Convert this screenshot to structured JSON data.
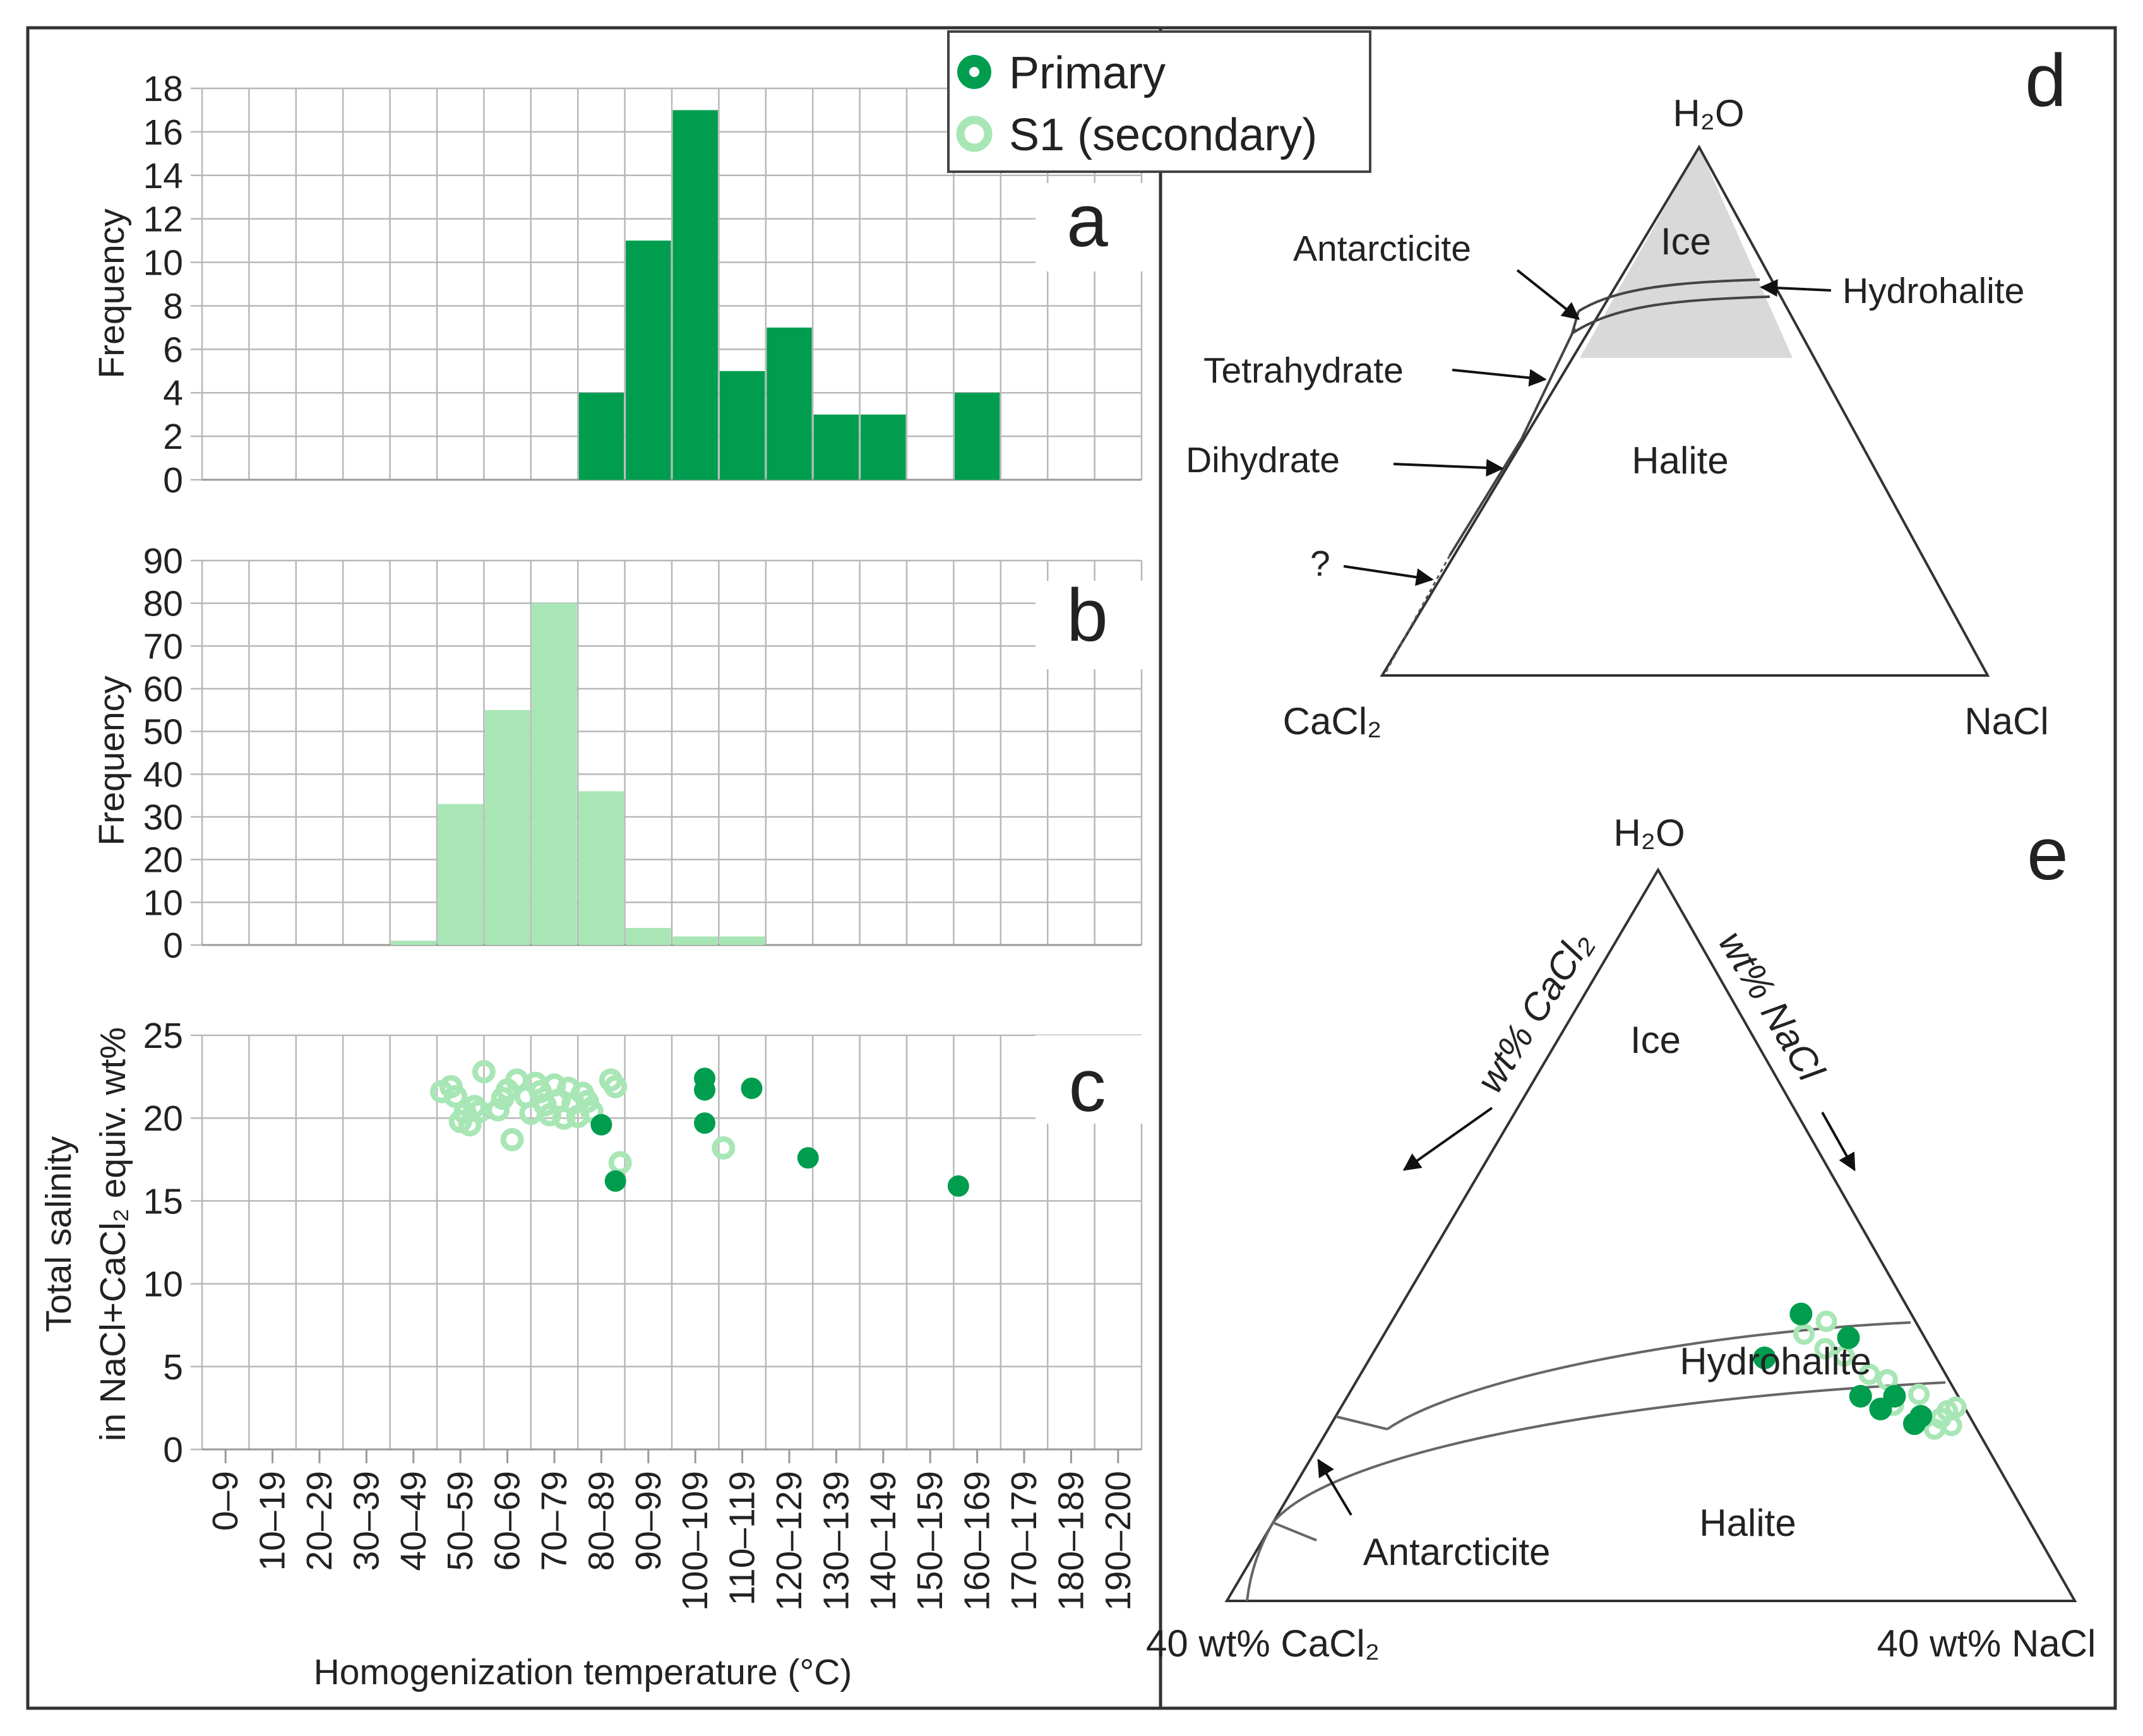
{
  "colors": {
    "primary": "#009d4f",
    "secondary": "#a8e6b6",
    "grid": "#b8b8b8",
    "field": "#d9d9d9"
  },
  "legend": {
    "items": [
      {
        "label": "Primary",
        "style": "filled"
      },
      {
        "label": "S1 (secondary)",
        "style": "open"
      }
    ]
  },
  "panel_letters": {
    "a": "a",
    "b": "b",
    "c": "c",
    "d": "d",
    "e": "e"
  },
  "x_axis": {
    "title": "Homogenization temperature (°C)",
    "categories": [
      "0–9",
      "10–19",
      "20–29",
      "30–39",
      "40–49",
      "50–59",
      "60–69",
      "70–79",
      "80–89",
      "90–99",
      "100–109",
      "110–119",
      "120–129",
      "130–139",
      "140–149",
      "150–159",
      "160–169",
      "170–179",
      "180–189",
      "190–200"
    ]
  },
  "chart_data": [
    {
      "id": "a",
      "type": "bar",
      "title": "",
      "xlabel": "Homogenization temperature (°C)",
      "ylabel": "Frequency",
      "ylim": [
        0,
        18
      ],
      "yticks": [
        0,
        2,
        4,
        6,
        8,
        10,
        12,
        14,
        16,
        18
      ],
      "categories": [
        "0–9",
        "10–19",
        "20–29",
        "30–39",
        "40–49",
        "50–59",
        "60–69",
        "70–79",
        "80–89",
        "90–99",
        "100–109",
        "110–119",
        "120–129",
        "130–139",
        "140–149",
        "150–159",
        "160–169",
        "170–179",
        "180–189",
        "190–200"
      ],
      "series": [
        {
          "name": "Primary",
          "values": [
            0,
            0,
            0,
            0,
            0,
            0,
            0,
            0,
            4,
            11,
            17,
            5,
            7,
            3,
            3,
            0,
            4,
            0,
            0,
            0
          ]
        }
      ]
    },
    {
      "id": "b",
      "type": "bar",
      "title": "",
      "xlabel": "Homogenization temperature (°C)",
      "ylabel": "Frequency",
      "ylim": [
        0,
        90
      ],
      "yticks": [
        0,
        10,
        20,
        30,
        40,
        50,
        60,
        70,
        80,
        90
      ],
      "categories": [
        "0–9",
        "10–19",
        "20–29",
        "30–39",
        "40–49",
        "50–59",
        "60–69",
        "70–79",
        "80–89",
        "90–99",
        "100–109",
        "110–119",
        "120–129",
        "130–139",
        "140–149",
        "150–159",
        "160–169",
        "170–179",
        "180–189",
        "190–200"
      ],
      "series": [
        {
          "name": "S1 (secondary)",
          "values": [
            0,
            0,
            0,
            0,
            1,
            33,
            55,
            80,
            36,
            4,
            2,
            2,
            0,
            0,
            0,
            0,
            0,
            0,
            0,
            0
          ]
        }
      ]
    },
    {
      "id": "c",
      "type": "scatter",
      "title": "",
      "xlabel": "Homogenization temperature (°C)",
      "ylabel_lines": [
        "Total salinity",
        "in NaCl+CaCl₂ equiv. wt%"
      ],
      "xlim": [
        0,
        200
      ],
      "ylim": [
        0,
        25
      ],
      "yticks": [
        0,
        5,
        10,
        15,
        20,
        25
      ],
      "series": [
        {
          "name": "Primary",
          "points": [
            [
              85,
              19.6
            ],
            [
              88,
              16.2
            ],
            [
              107,
              22.4
            ],
            [
              107,
              21.7
            ],
            [
              107,
              19.7
            ],
            [
              117,
              21.8
            ],
            [
              129,
              17.6
            ],
            [
              161,
              15.9
            ]
          ]
        },
        {
          "name": "S1 (secondary)",
          "points": [
            [
              51,
              21.6
            ],
            [
              53,
              21.9
            ],
            [
              54,
              21.3
            ],
            [
              55,
              19.8
            ],
            [
              56,
              20.3
            ],
            [
              57,
              19.6
            ],
            [
              58,
              20.7
            ],
            [
              59,
              20.4
            ],
            [
              60,
              22.8
            ],
            [
              63,
              20.5
            ],
            [
              64,
              21.2
            ],
            [
              65,
              21.7
            ],
            [
              66,
              18.7
            ],
            [
              67,
              22.3
            ],
            [
              69,
              21.3
            ],
            [
              70,
              20.3
            ],
            [
              71,
              22.1
            ],
            [
              72,
              21.6
            ],
            [
              73,
              20.8
            ],
            [
              74,
              20.2
            ],
            [
              75,
              22.0
            ],
            [
              76,
              21.1
            ],
            [
              77,
              20.0
            ],
            [
              78,
              21.8
            ],
            [
              79,
              20.9
            ],
            [
              80,
              20.1
            ],
            [
              81,
              21.5
            ],
            [
              82,
              21.0
            ],
            [
              83,
              20.4
            ],
            [
              87,
              22.3
            ],
            [
              88,
              21.9
            ],
            [
              89,
              17.3
            ],
            [
              111,
              18.2
            ]
          ]
        }
      ]
    },
    {
      "id": "e",
      "type": "scatter",
      "title": "",
      "ternary_apices": [
        "H₂O",
        "40 wt% CaCl₂",
        "40 wt% NaCl"
      ],
      "axis_arrows": [
        "wt% CaCl₂",
        "wt% NaCl"
      ],
      "units": "wt% (CaCl₂, NaCl) on a 0–40 wt% ternary",
      "series": [
        {
          "name": "Primary",
          "points": [
            [
              8.1,
              18.6
            ],
            [
              5.2,
              19.1
            ],
            [
              4.6,
              24.2
            ],
            [
              4.0,
              25.5
            ],
            [
              3.6,
              22.0
            ],
            [
              3.0,
              25.8
            ],
            [
              2.8,
              27.5
            ],
            [
              2.3,
              27.6
            ]
          ]
        },
        {
          "name": "S1 (secondary)",
          "points": [
            [
              5.6,
              19.8
            ],
            [
              5.0,
              21.2
            ],
            [
              4.3,
              22.3
            ],
            [
              4.2,
              20.5
            ],
            [
              3.6,
              24.0
            ],
            [
              3.3,
              26.0
            ],
            [
              2.9,
              25.0
            ],
            [
              2.5,
              27.6
            ],
            [
              2.2,
              27.8
            ],
            [
              2.0,
              28.6
            ],
            [
              1.4,
              28.6
            ],
            [
              1.8,
              26.9
            ],
            [
              1.1,
              29.3
            ],
            [
              0.9,
              28.7
            ],
            [
              0.4,
              29.0
            ]
          ]
        }
      ]
    }
  ],
  "panel_d": {
    "apex_top": "H₂O",
    "apex_left": "CaCl₂",
    "apex_right": "NaCl",
    "field_labels": {
      "ice": "Ice",
      "halite": "Halite"
    },
    "annotations": {
      "antarcticite": "Antarcticite",
      "hydrohalite": "Hydrohalite",
      "tetrahydrate": "Tetrahydrate",
      "dihydrate": "Dihydrate",
      "unknown": "?"
    }
  },
  "panel_e": {
    "field_labels": {
      "ice": "Ice",
      "hydrohalite": "Hydrohalite",
      "halite": "Halite",
      "antarcticite": "Antarcticite"
    }
  }
}
